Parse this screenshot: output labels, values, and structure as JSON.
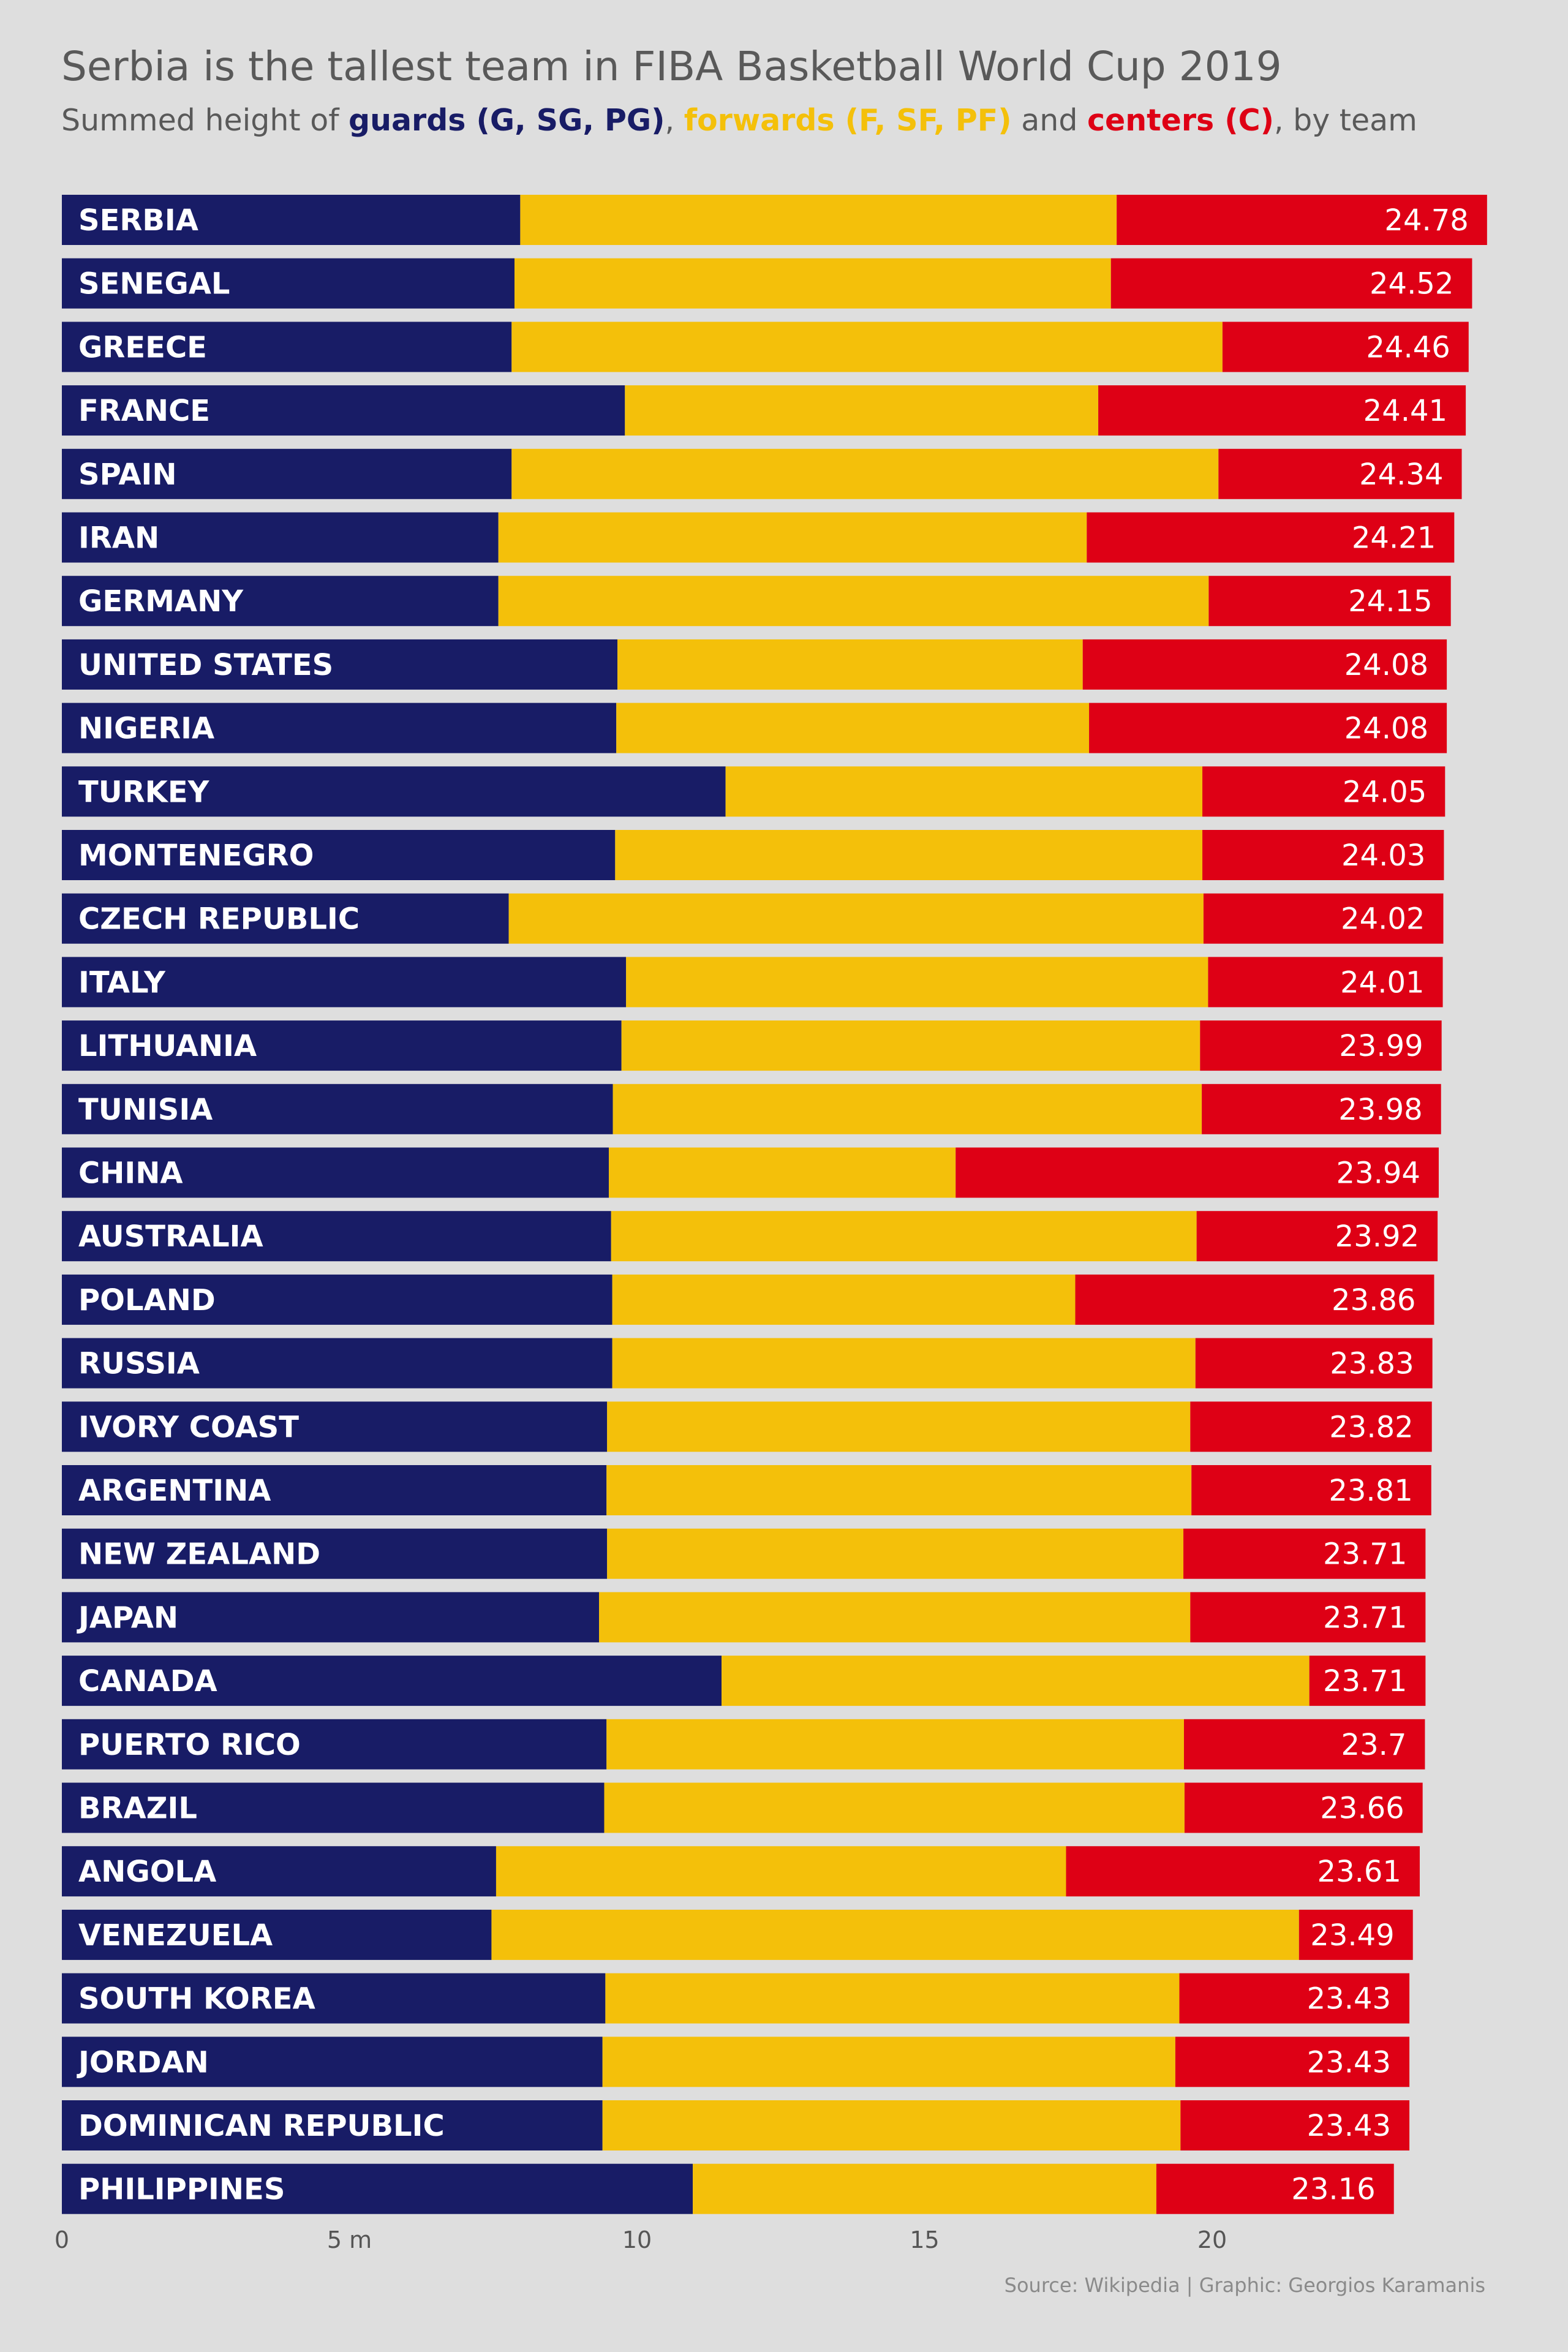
{
  "title": "Serbia is the tallest team in FIBA Basketball World Cup 2019",
  "subtitle": {
    "prefix": "Summed height of ",
    "guards": "guards (G, SG, PG)",
    "sep1": ", ",
    "forwards": "forwards (F, SF, PF)",
    "sep2": " and ",
    "centers": "centers (C)",
    "suffix": ", by team"
  },
  "caption": "Source: Wikipedia | Graphic: Georgios Karamanis",
  "colors": {
    "guards": "#181c66",
    "forwards": "#f4c00a",
    "centers": "#de0015",
    "background": "#dedede"
  },
  "chart_data": {
    "type": "bar",
    "orientation": "horizontal",
    "stacked": true,
    "x_unit": "m",
    "xlim": [
      0,
      25
    ],
    "x_ticks": [
      {
        "value": 0,
        "label": "0"
      },
      {
        "value": 5,
        "label": "5 m"
      },
      {
        "value": 10,
        "label": "10"
      },
      {
        "value": 15,
        "label": "15"
      },
      {
        "value": 20,
        "label": "20"
      }
    ],
    "series_names": [
      "guards",
      "forwards",
      "centers"
    ],
    "teams": [
      {
        "name": "SERBIA",
        "guards": 7.97,
        "forwards": 10.37,
        "total": "24.78"
      },
      {
        "name": "SENEGAL",
        "guards": 7.87,
        "forwards": 10.37,
        "total": "24.52"
      },
      {
        "name": "GREECE",
        "guards": 7.82,
        "forwards": 12.36,
        "total": "24.46"
      },
      {
        "name": "FRANCE",
        "guards": 9.79,
        "forwards": 8.23,
        "total": "24.41"
      },
      {
        "name": "SPAIN",
        "guards": 7.82,
        "forwards": 12.29,
        "total": "24.34"
      },
      {
        "name": "IRAN",
        "guards": 7.59,
        "forwards": 10.23,
        "total": "24.21"
      },
      {
        "name": "GERMANY",
        "guards": 7.59,
        "forwards": 12.35,
        "total": "24.15"
      },
      {
        "name": "UNITED STATES",
        "guards": 9.66,
        "forwards": 8.09,
        "total": "24.08"
      },
      {
        "name": "NIGERIA",
        "guards": 9.64,
        "forwards": 8.22,
        "total": "24.08"
      },
      {
        "name": "TURKEY",
        "guards": 11.54,
        "forwards": 8.29,
        "total": "24.05"
      },
      {
        "name": "MONTENEGRO",
        "guards": 9.62,
        "forwards": 10.21,
        "total": "24.03"
      },
      {
        "name": "CZECH REPUBLIC",
        "guards": 7.77,
        "forwards": 12.08,
        "total": "24.02"
      },
      {
        "name": "ITALY",
        "guards": 9.81,
        "forwards": 10.12,
        "total": "24.01"
      },
      {
        "name": "LITHUANIA",
        "guards": 9.73,
        "forwards": 10.06,
        "total": "23.99"
      },
      {
        "name": "TUNISIA",
        "guards": 9.58,
        "forwards": 10.24,
        "total": "23.98"
      },
      {
        "name": "CHINA",
        "guards": 9.51,
        "forwards": 6.03,
        "total": "23.94"
      },
      {
        "name": "AUSTRALIA",
        "guards": 9.55,
        "forwards": 10.18,
        "total": "23.92"
      },
      {
        "name": "POLAND",
        "guards": 9.57,
        "forwards": 8.05,
        "total": "23.86"
      },
      {
        "name": "RUSSIA",
        "guards": 9.57,
        "forwards": 10.14,
        "total": "23.83"
      },
      {
        "name": "IVORY COAST",
        "guards": 9.48,
        "forwards": 10.14,
        "total": "23.82"
      },
      {
        "name": "ARGENTINA",
        "guards": 9.47,
        "forwards": 10.17,
        "total": "23.81"
      },
      {
        "name": "NEW ZEALAND",
        "guards": 9.48,
        "forwards": 10.02,
        "total": "23.71"
      },
      {
        "name": "JAPAN",
        "guards": 9.34,
        "forwards": 10.28,
        "total": "23.71"
      },
      {
        "name": "CANADA",
        "guards": 11.47,
        "forwards": 10.22,
        "total": "23.71"
      },
      {
        "name": "PUERTO RICO",
        "guards": 9.47,
        "forwards": 10.04,
        "total": "23.7"
      },
      {
        "name": "BRAZIL",
        "guards": 9.43,
        "forwards": 10.09,
        "total": "23.66"
      },
      {
        "name": "ANGOLA",
        "guards": 7.55,
        "forwards": 9.91,
        "total": "23.61"
      },
      {
        "name": "VENEZUELA",
        "guards": 7.47,
        "forwards": 14.04,
        "total": "23.49"
      },
      {
        "name": "SOUTH KOREA",
        "guards": 9.45,
        "forwards": 9.98,
        "total": "23.43"
      },
      {
        "name": "JORDAN",
        "guards": 9.4,
        "forwards": 9.96,
        "total": "23.43"
      },
      {
        "name": "DOMINICAN REPUBLIC",
        "guards": 9.4,
        "forwards": 10.05,
        "total": "23.43"
      },
      {
        "name": "PHILIPPINES",
        "guards": 10.97,
        "forwards": 8.06,
        "total": "23.16"
      }
    ]
  }
}
